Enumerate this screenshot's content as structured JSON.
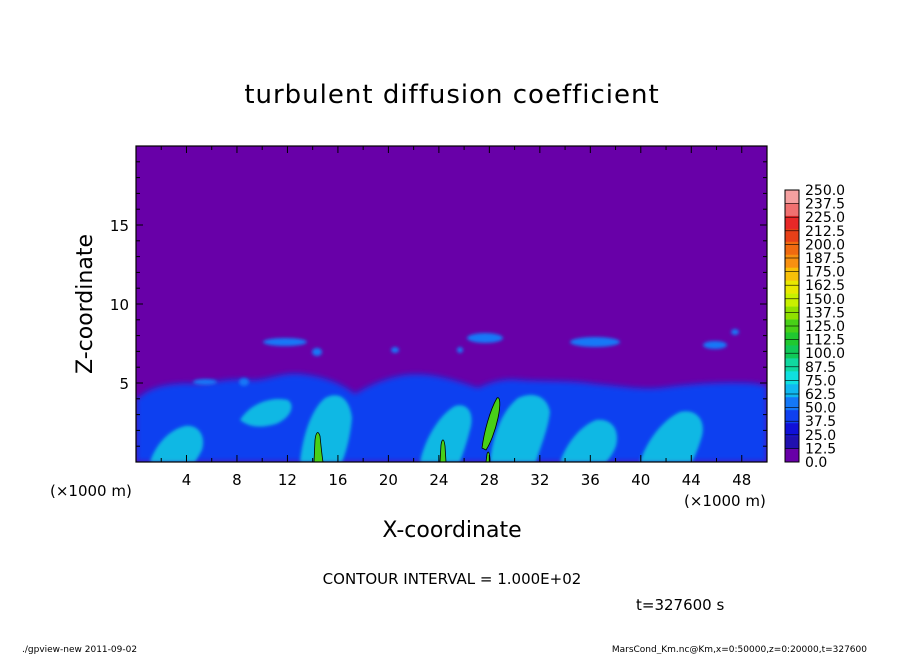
{
  "chart_data": {
    "type": "heatmap",
    "title": "turbulent diffusion coefficient",
    "xlabel": "X-coordinate",
    "ylabel": "Z-coordinate",
    "x_unit_left": "(×1000 m)",
    "x_unit_right": "(×1000 m)",
    "xlim": [
      0,
      50
    ],
    "ylim": [
      0,
      20
    ],
    "x_ticks": [
      "4",
      "8",
      "12",
      "16",
      "20",
      "24",
      "28",
      "32",
      "36",
      "40",
      "44",
      "48"
    ],
    "y_ticks": [
      "5",
      "10",
      "15"
    ],
    "colorbar": {
      "labels": [
        "250.0",
        "237.5",
        "225.0",
        "212.5",
        "200.0",
        "187.5",
        "175.0",
        "162.5",
        "150.0",
        "137.5",
        "125.0",
        "112.5",
        "100.0",
        "87.5",
        "75.0",
        "62.5",
        "50.0",
        "37.5",
        "25.0",
        "12.5",
        "0.0"
      ],
      "colors": [
        "#f5a0a0",
        "#f07070",
        "#e82828",
        "#e84018",
        "#f06a10",
        "#f89010",
        "#f8c008",
        "#e8e800",
        "#c8f000",
        "#90e000",
        "#48d018",
        "#20c830",
        "#10c858",
        "#10d8a0",
        "#10e0e0",
        "#10b8f0",
        "#1478f8",
        "#1040f0",
        "#1010d8",
        "#2010b0",
        "#6800a8"
      ]
    },
    "field": {
      "background_value_range": "0.0-12.5",
      "background_color": "#6800a8",
      "boundary_layer_top": 5,
      "contour_level": 100
    },
    "contour_interval_text": "CONTOUR INTERVAL = 1.000E+02",
    "time_text": "t=327600 s"
  },
  "footer": {
    "left": "./gpview-new  2011-09-02",
    "right": "MarsCond_Km.nc@Km,x=0:50000,z=0:20000,t=327600"
  }
}
